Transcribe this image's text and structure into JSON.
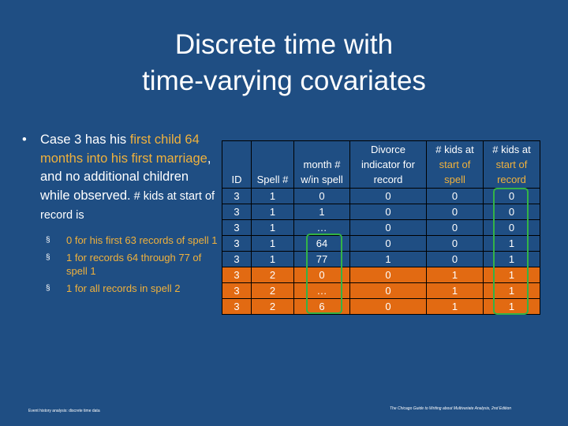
{
  "title": {
    "line1": "Discrete time with",
    "line2": "time-varying covariates"
  },
  "bullet": {
    "marker": "•",
    "t1": "Case 3 has his ",
    "h1": "first child 64 months into his first marriage",
    "t2": ", and no additional children while observed.",
    "t3": " # kids at start of record is",
    "sub_marker": "§",
    "sub": [
      "0 for his first 63 records of spell 1",
      "1 for records 64 through 77 of spell 1",
      "1 for all records in spell 2"
    ]
  },
  "table": {
    "headers": {
      "id": "ID",
      "spell": "Spell #",
      "month_l1": "month #",
      "month_l2": "w/in spell",
      "div_l1": "Divorce",
      "div_l2": "indicator for",
      "div_l3": "record",
      "kids_spell_l1": "# kids at",
      "kids_spell_l2": "start of",
      "kids_spell_l3": "spell",
      "kids_rec_l1": "# kids at",
      "kids_rec_l2": "start of",
      "kids_rec_l3": "record"
    },
    "rows": [
      {
        "id": "3",
        "spell": "1",
        "month": "0",
        "divorce": "0",
        "kids_spell": "0",
        "kids_record": "0"
      },
      {
        "id": "3",
        "spell": "1",
        "month": "1",
        "divorce": "0",
        "kids_spell": "0",
        "kids_record": "0"
      },
      {
        "id": "3",
        "spell": "1",
        "month": "…",
        "divorce": "0",
        "kids_spell": "0",
        "kids_record": "0"
      },
      {
        "id": "3",
        "spell": "1",
        "month": "64",
        "divorce": "0",
        "kids_spell": "0",
        "kids_record": "1"
      },
      {
        "id": "3",
        "spell": "1",
        "month": "77",
        "divorce": "1",
        "kids_spell": "0",
        "kids_record": "1"
      },
      {
        "id": "3",
        "spell": "2",
        "month": "0",
        "divorce": "0",
        "kids_spell": "1",
        "kids_record": "1"
      },
      {
        "id": "3",
        "spell": "2",
        "month": "…",
        "divorce": "0",
        "kids_spell": "1",
        "kids_record": "1"
      },
      {
        "id": "3",
        "spell": "2",
        "month": "6",
        "divorce": "0",
        "kids_spell": "1",
        "kids_record": "1"
      }
    ]
  },
  "footer": {
    "left": "Event history analysis: discrete time data",
    "right": "The Chicago Guide to Writing about Multivariate Analysis, 2nd Edition"
  },
  "colors": {
    "background": "#1f4e83",
    "highlight_text": "#f0b13c",
    "orange_row": "#e26a12",
    "ring_green": "#33b347"
  }
}
